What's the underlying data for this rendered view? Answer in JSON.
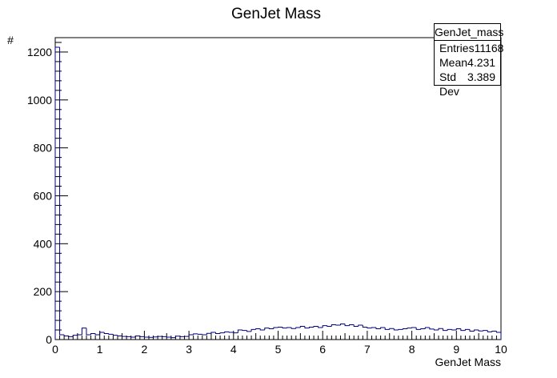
{
  "chart_data": {
    "type": "bar",
    "title": "GenJet Mass",
    "xlabel": "GenJet Mass",
    "ylabel": "#",
    "xlim": [
      0,
      10
    ],
    "ylim": [
      0,
      1260
    ],
    "bin_width": 0.1,
    "x_ticks": [
      "0",
      "1",
      "2",
      "3",
      "4",
      "5",
      "6",
      "7",
      "8",
      "9",
      "10"
    ],
    "y_ticks": [
      "0",
      "200",
      "400",
      "600",
      "800",
      "1000",
      "1200"
    ],
    "bin_low_edges": [
      0,
      0.1,
      0.2,
      0.3,
      0.4,
      0.5,
      0.6,
      0.7,
      0.8,
      0.9,
      1.0,
      1.1,
      1.2,
      1.3,
      1.4,
      1.5,
      1.6,
      1.7,
      1.8,
      1.9,
      2.0,
      2.1,
      2.2,
      2.3,
      2.4,
      2.5,
      2.6,
      2.7,
      2.8,
      2.9,
      3.0,
      3.1,
      3.2,
      3.3,
      3.4,
      3.5,
      3.6,
      3.7,
      3.8,
      3.9,
      4.0,
      4.1,
      4.2,
      4.3,
      4.4,
      4.5,
      4.6,
      4.7,
      4.8,
      4.9,
      5.0,
      5.1,
      5.2,
      5.3,
      5.4,
      5.5,
      5.6,
      5.7,
      5.8,
      5.9,
      6.0,
      6.1,
      6.2,
      6.3,
      6.4,
      6.5,
      6.6,
      6.7,
      6.8,
      6.9,
      7.0,
      7.1,
      7.2,
      7.3,
      7.4,
      7.5,
      7.6,
      7.7,
      7.8,
      7.9,
      8.0,
      8.1,
      8.2,
      8.3,
      8.4,
      8.5,
      8.6,
      8.7,
      8.8,
      8.9,
      9.0,
      9.1,
      9.2,
      9.3,
      9.4,
      9.5,
      9.6,
      9.7,
      9.8,
      9.9
    ],
    "values": [
      1220,
      20,
      15,
      12,
      18,
      20,
      48,
      20,
      25,
      20,
      30,
      25,
      22,
      18,
      15,
      13,
      12,
      10,
      15,
      12,
      10,
      9,
      11,
      13,
      12,
      10,
      8,
      14,
      12,
      13,
      20,
      24,
      22,
      20,
      26,
      30,
      25,
      28,
      32,
      30,
      28,
      40,
      38,
      34,
      42,
      45,
      40,
      48,
      45,
      50,
      52,
      48,
      50,
      46,
      50,
      55,
      48,
      52,
      55,
      50,
      58,
      55,
      62,
      60,
      65,
      58,
      62,
      55,
      60,
      52,
      48,
      50,
      45,
      50,
      42,
      46,
      40,
      42,
      45,
      48,
      50,
      42,
      45,
      50,
      44,
      40,
      46,
      38,
      42,
      40,
      45,
      38,
      42,
      35,
      40,
      36,
      38,
      32,
      35,
      30
    ],
    "line_color": "#000080",
    "grid": false,
    "legend": "none"
  },
  "stats": {
    "title": "GenJet_mass",
    "rows": [
      {
        "label": "Entries",
        "value": "11168"
      },
      {
        "label": "Mean",
        "value": "4.231"
      },
      {
        "label": "Std Dev",
        "value": "3.389"
      }
    ]
  }
}
